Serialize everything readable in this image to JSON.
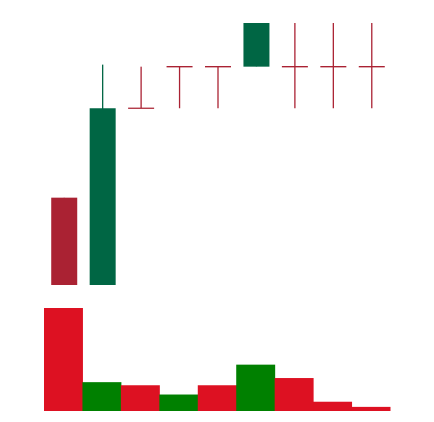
{
  "chart_data": [
    {
      "type": "candlestick",
      "title": "",
      "xlabel": "",
      "ylabel": "",
      "grid": false,
      "legend": "none",
      "ylim": [
        0,
        20
      ],
      "colors": {
        "up": "#006644",
        "down": "#aa2233",
        "doji": "#aa2233"
      },
      "candles": [
        {
          "open": 9.6,
          "high": 9.6,
          "low": 5.4,
          "close": 5.4
        },
        {
          "open": 5.4,
          "high": 16.0,
          "low": 5.4,
          "close": 13.9
        },
        {
          "open": 13.9,
          "high": 15.9,
          "low": 13.9,
          "close": 13.9
        },
        {
          "open": 15.9,
          "high": 15.9,
          "low": 13.9,
          "close": 15.9
        },
        {
          "open": 15.9,
          "high": 15.9,
          "low": 13.9,
          "close": 15.9
        },
        {
          "open": 15.9,
          "high": 18.0,
          "low": 15.9,
          "close": 18.0
        },
        {
          "open": 15.9,
          "high": 18.0,
          "low": 13.9,
          "close": 15.9
        },
        {
          "open": 15.9,
          "high": 18.0,
          "low": 13.9,
          "close": 15.9
        },
        {
          "open": 15.9,
          "high": 18.0,
          "low": 13.9,
          "close": 15.9
        }
      ]
    },
    {
      "type": "bar",
      "title": "",
      "xlabel": "",
      "ylabel": "",
      "grid": false,
      "legend": "none",
      "ylim": [
        0,
        100
      ],
      "colors": {
        "up": "#008000",
        "down": "#dd1122"
      },
      "values": [
        100,
        28,
        25,
        16,
        25,
        45,
        32,
        9,
        4
      ],
      "directions": [
        "down",
        "up",
        "down",
        "up",
        "down",
        "up",
        "down",
        "down",
        "down"
      ]
    }
  ]
}
